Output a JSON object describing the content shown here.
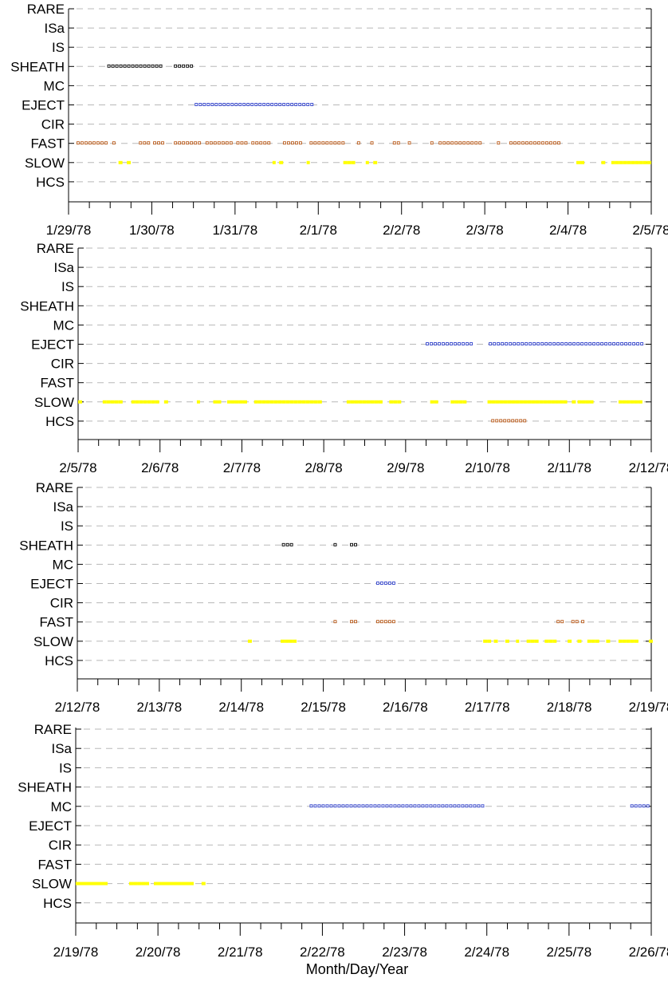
{
  "chart_data": {
    "type": "scatter",
    "title": "",
    "xlabel": "Month/Day/Year",
    "categories": [
      "RARE",
      "ISa",
      "IS",
      "SHEATH",
      "MC",
      "EJECT",
      "CIR",
      "FAST",
      "SLOW",
      "HCS"
    ],
    "colors": {
      "SHEATH": "#000000",
      "EJECT": "#3344cc",
      "MC": "#3344cc",
      "FAST": "#b85a1a",
      "HCS": "#b85a1a",
      "SLOW": "#ffff00"
    },
    "grid": "dashed horizontal lines at each category",
    "panels": [
      {
        "xlim": [
          0,
          7
        ],
        "tick_labels": [
          "1/29/78",
          "1/30/78",
          "1/31/78",
          "2/1/78",
          "2/2/78",
          "2/3/78",
          "2/4/78",
          "2/5/78"
        ],
        "series": [
          {
            "category": "SHEATH",
            "style": "open",
            "intervals": [
              [
                0.47,
                1.17
              ],
              [
                1.27,
                1.52
              ]
            ]
          },
          {
            "category": "EJECT",
            "style": "open",
            "intervals": [
              [
                1.52,
                2.98
              ]
            ]
          },
          {
            "category": "FAST",
            "style": "open",
            "intervals": [
              [
                0.1,
                0.47
              ],
              [
                0.53,
                0.6
              ],
              [
                0.65,
                0.68
              ],
              [
                0.85,
                0.98
              ],
              [
                1.02,
                1.18
              ],
              [
                1.27,
                1.6
              ],
              [
                1.65,
                1.98
              ],
              [
                2.02,
                2.15
              ],
              [
                2.2,
                2.45
              ],
              [
                2.58,
                2.85
              ],
              [
                2.9,
                3.32
              ],
              [
                3.47,
                3.55
              ],
              [
                3.63,
                3.67
              ],
              [
                3.9,
                4.02
              ],
              [
                4.08,
                4.15
              ],
              [
                4.35,
                4.4
              ],
              [
                4.45,
                4.98
              ],
              [
                5.07,
                5.1
              ],
              [
                5.15,
                5.22
              ],
              [
                5.3,
                5.92
              ]
            ]
          },
          {
            "category": "SLOW",
            "style": "filled",
            "intervals": [
              [
                0.6,
                0.64
              ],
              [
                0.7,
                0.78
              ],
              [
                2.45,
                2.48
              ],
              [
                2.53,
                2.57
              ],
              [
                2.86,
                2.89
              ],
              [
                3.3,
                3.45
              ],
              [
                3.57,
                3.6
              ],
              [
                3.66,
                3.73
              ],
              [
                6.1,
                6.22
              ],
              [
                6.4,
                6.48
              ],
              [
                6.52,
                7.05
              ]
            ]
          }
        ]
      },
      {
        "xlim": [
          0,
          7
        ],
        "tick_labels": [
          "2/5/78",
          "2/6/78",
          "2/7/78",
          "2/8/78",
          "2/9/78",
          "2/10/78",
          "2/11/78",
          "2/12/78"
        ],
        "series": [
          {
            "category": "EJECT",
            "style": "open",
            "intervals": [
              [
                4.25,
                4.85
              ],
              [
                5.02,
                6.95
              ]
            ]
          },
          {
            "category": "SLOW",
            "style": "filled",
            "intervals": [
              [
                0.0,
                0.06
              ],
              [
                0.3,
                0.55
              ],
              [
                0.65,
                1.0
              ],
              [
                1.05,
                1.12
              ],
              [
                1.45,
                1.48
              ],
              [
                1.65,
                1.78
              ],
              [
                1.82,
                2.05
              ],
              [
                2.15,
                2.98
              ],
              [
                3.28,
                3.72
              ],
              [
                3.8,
                3.95
              ],
              [
                4.3,
                4.42
              ],
              [
                4.55,
                4.75
              ],
              [
                5.0,
                5.97
              ],
              [
                6.03,
                6.07
              ],
              [
                6.1,
                6.3
              ],
              [
                6.6,
                6.92
              ]
            ]
          },
          {
            "category": "HCS",
            "style": "open",
            "intervals": [
              [
                5.05,
                5.52
              ]
            ]
          }
        ]
      },
      {
        "xlim": [
          0,
          7
        ],
        "tick_labels": [
          "2/12/78",
          "2/13/78",
          "2/14/78",
          "2/15/78",
          "2/16/78",
          "2/17/78",
          "2/18/78",
          "2/19/78"
        ],
        "series": [
          {
            "category": "SHEATH",
            "style": "open",
            "intervals": [
              [
                2.5,
                2.65
              ],
              [
                3.05,
                3.08
              ],
              [
                3.13,
                3.17
              ],
              [
                3.33,
                3.42
              ]
            ]
          },
          {
            "category": "EJECT",
            "style": "open",
            "intervals": [
              [
                3.65,
                3.9
              ],
              [
                3.93,
                3.96
              ]
            ]
          },
          {
            "category": "FAST",
            "style": "open",
            "intervals": [
              [
                3.05,
                3.08
              ],
              [
                3.13,
                3.17
              ],
              [
                3.33,
                3.42
              ],
              [
                3.65,
                3.9
              ],
              [
                3.93,
                3.96
              ],
              [
                5.0,
                5.03
              ],
              [
                5.85,
                5.98
              ],
              [
                6.03,
                6.12
              ],
              [
                6.15,
                6.22
              ],
              [
                6.4,
                6.43
              ],
              [
                6.57,
                6.6
              ]
            ]
          },
          {
            "category": "SLOW",
            "style": "filled",
            "intervals": [
              [
                2.08,
                2.12
              ],
              [
                2.48,
                2.66
              ],
              [
                4.95,
                5.05
              ],
              [
                5.08,
                5.15
              ],
              [
                5.22,
                5.3
              ],
              [
                5.35,
                5.38
              ],
              [
                5.48,
                5.62
              ],
              [
                5.7,
                5.85
              ],
              [
                5.98,
                6.03
              ],
              [
                6.1,
                6.14
              ],
              [
                6.22,
                6.38
              ],
              [
                6.45,
                6.52
              ],
              [
                6.6,
                6.85
              ],
              [
                6.97,
                7.12
              ]
            ]
          }
        ]
      },
      {
        "xlim": [
          0,
          7
        ],
        "tick_labels": [
          "2/19/78",
          "2/20/78",
          "2/21/78",
          "2/22/78",
          "2/23/78",
          "2/24/78",
          "2/25/78",
          "2/26/78"
        ],
        "series": [
          {
            "category": "MC",
            "style": "open",
            "intervals": [
              [
                2.85,
                4.98
              ],
              [
                6.75,
                7.12
              ]
            ]
          },
          {
            "category": "SLOW",
            "style": "filled",
            "intervals": [
              [
                0.0,
                0.42
              ],
              [
                0.65,
                0.9
              ],
              [
                0.95,
                1.45
              ],
              [
                1.53,
                1.58
              ]
            ]
          }
        ]
      }
    ]
  }
}
